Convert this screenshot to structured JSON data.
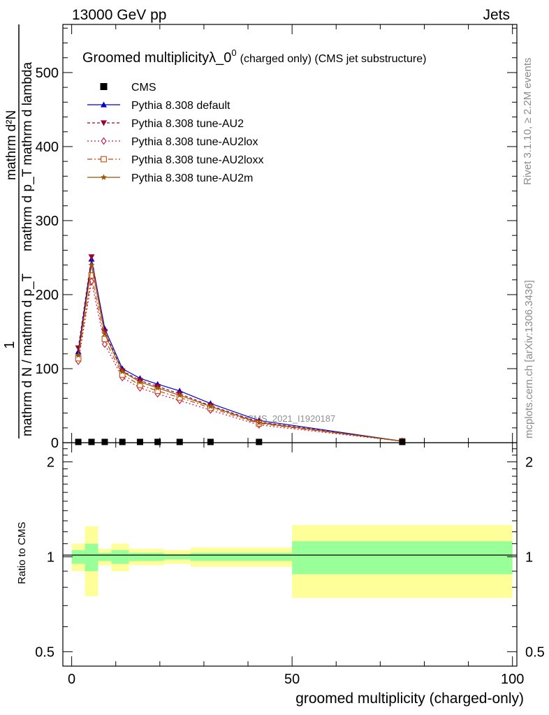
{
  "header": {
    "left": "13000 GeV pp",
    "right": "Jets"
  },
  "side": {
    "rivet": "Rivet 3.1.10, ≥ 2.2M events",
    "mcplots": "mcplots.cern.ch [arXiv:1306.3436]"
  },
  "watermark": "CMS_2021_I1920187",
  "chart_data": {
    "type": "line",
    "title_main": "Groomed multiplicity",
    "title_lambda": "λ_0",
    "title_sup": "0",
    "title_suffix": "(charged only) (CMS jet substructure)",
    "ylabel_top": "1",
    "ylabel_den": "mathrm d N / mathrm d p_T",
    "ylabel_num": "mathrm d²N",
    "ylabel_den2": "mathrm d p_T mathrm d lambda",
    "xlabel": "groomed multiplicity (charged-only)",
    "ratio_ylabel": "Ratio to CMS",
    "xlim": [
      -2,
      101
    ],
    "ylim": [
      0,
      565
    ],
    "ratio_ylim": [
      0.45,
      2.3
    ],
    "x_ticks": [
      0,
      50,
      100
    ],
    "y_ticks": [
      0,
      100,
      200,
      300,
      400,
      500
    ],
    "ratio_ticks": [
      0.5,
      1,
      2
    ],
    "bins": [
      0,
      3,
      6,
      9,
      13,
      17,
      21,
      27,
      35,
      50,
      100
    ],
    "data": {
      "name": "CMS",
      "x": [
        1.5,
        4.5,
        7.5,
        11.5,
        15.5,
        19.5,
        24.5,
        31.5,
        42.5,
        75
      ],
      "y": [
        1,
        1,
        1,
        1,
        1,
        1,
        1,
        1,
        1,
        1
      ]
    },
    "ratio_band_inner": [
      [
        0.95,
        1.05
      ],
      [
        0.9,
        1.1
      ],
      [
        0.97,
        1.03
      ],
      [
        0.95,
        1.05
      ],
      [
        0.97,
        1.03
      ],
      [
        0.97,
        1.03
      ],
      [
        0.98,
        1.02
      ],
      [
        0.97,
        1.03
      ],
      [
        0.97,
        1.03
      ],
      [
        0.88,
        1.12
      ]
    ],
    "ratio_band_outer": [
      [
        0.9,
        1.1
      ],
      [
        0.75,
        1.25
      ],
      [
        0.94,
        1.06
      ],
      [
        0.9,
        1.1
      ],
      [
        0.94,
        1.06
      ],
      [
        0.94,
        1.06
      ],
      [
        0.95,
        1.05
      ],
      [
        0.93,
        1.07
      ],
      [
        0.93,
        1.07
      ],
      [
        0.74,
        1.26
      ]
    ],
    "series": [
      {
        "name": "Pythia 8.308 default",
        "color": "#0000cc",
        "marker": "triangle-up",
        "dash": "",
        "x": [
          1.5,
          4.5,
          7.5,
          11.5,
          15.5,
          19.5,
          24.5,
          31.5,
          42.5,
          75
        ],
        "y": [
          123,
          248,
          154,
          100,
          87,
          79,
          70,
          53,
          30,
          2
        ]
      },
      {
        "name": "Pythia 8.308 tune-AU2",
        "color": "#990033",
        "marker": "triangle-down",
        "dash": "4,3",
        "x": [
          1.5,
          4.5,
          7.5,
          11.5,
          15.5,
          19.5,
          24.5,
          31.5,
          42.5,
          75
        ],
        "y": [
          128,
          251,
          150,
          97,
          84,
          76,
          66,
          50,
          28,
          2
        ]
      },
      {
        "name": "Pythia 8.308 tune-AU2lox",
        "color": "#cc1144",
        "marker": "diamond-open",
        "dash": "2,3",
        "x": [
          1.5,
          4.5,
          7.5,
          11.5,
          15.5,
          19.5,
          24.5,
          31.5,
          42.5,
          75
        ],
        "y": [
          110,
          218,
          133,
          88,
          74,
          66,
          57,
          44,
          24,
          2
        ]
      },
      {
        "name": "Pythia 8.308 tune-AU2loxx",
        "color": "#cc4400",
        "marker": "square-open",
        "dash": "7,3,2,3",
        "x": [
          1.5,
          4.5,
          7.5,
          11.5,
          15.5,
          19.5,
          24.5,
          31.5,
          42.5,
          75
        ],
        "y": [
          114,
          226,
          140,
          92,
          78,
          70,
          61,
          47,
          26,
          2
        ]
      },
      {
        "name": "Pythia 8.308 tune-AU2m",
        "color": "#995500",
        "marker": "star",
        "dash": "",
        "x": [
          1.5,
          4.5,
          7.5,
          11.5,
          15.5,
          19.5,
          24.5,
          31.5,
          42.5,
          75
        ],
        "y": [
          118,
          240,
          147,
          96,
          82,
          74,
          64,
          49,
          27,
          2
        ]
      }
    ]
  }
}
